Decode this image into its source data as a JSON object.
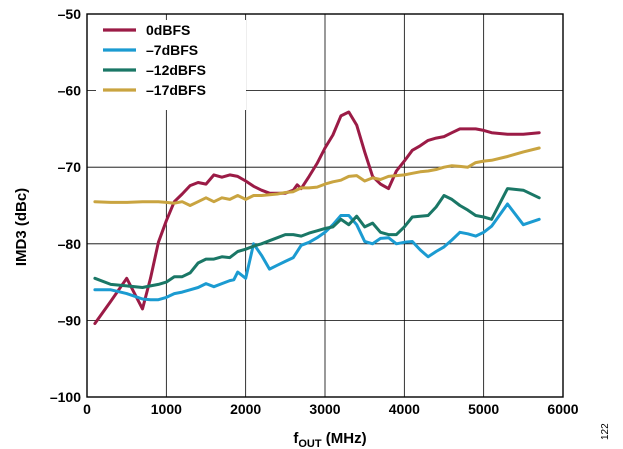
{
  "figure_number": "122",
  "chart_data": {
    "type": "line",
    "xlabel_main": "f",
    "xlabel_sub": "OUT",
    "xlabel_unit": " (MHz)",
    "ylabel": "IMD3 (dBc)",
    "xlim": [
      0,
      6000
    ],
    "ylim": [
      -100,
      -50
    ],
    "x_ticks": [
      0,
      1000,
      2000,
      3000,
      4000,
      5000,
      6000
    ],
    "x_tick_labels": [
      "0",
      "1000",
      "2000",
      "3000",
      "4000",
      "5000",
      "6000"
    ],
    "y_ticks": [
      -50,
      -60,
      -70,
      -80,
      -90,
      -100
    ],
    "y_tick_labels": [
      "–50",
      "–60",
      "–70",
      "–80",
      "–90",
      "–100"
    ],
    "grid": true,
    "legend_position": "top-left",
    "series": [
      {
        "name": "0dBFS",
        "color": "#9b1b46",
        "points": [
          [
            100,
            -90.4
          ],
          [
            300,
            -87.5
          ],
          [
            500,
            -84.5
          ],
          [
            700,
            -88.5
          ],
          [
            800,
            -84.5
          ],
          [
            900,
            -79.8
          ],
          [
            1000,
            -77
          ],
          [
            1100,
            -74.5
          ],
          [
            1200,
            -73.5
          ],
          [
            1300,
            -72.4
          ],
          [
            1400,
            -72
          ],
          [
            1500,
            -72.2
          ],
          [
            1600,
            -71
          ],
          [
            1700,
            -71.3
          ],
          [
            1800,
            -71
          ],
          [
            1900,
            -71.2
          ],
          [
            2000,
            -71.8
          ],
          [
            2100,
            -72.5
          ],
          [
            2200,
            -73
          ],
          [
            2300,
            -73.4
          ],
          [
            2400,
            -73.4
          ],
          [
            2500,
            -73.4
          ],
          [
            2600,
            -73
          ],
          [
            2650,
            -72.3
          ],
          [
            2700,
            -72.8
          ],
          [
            2800,
            -71.2
          ],
          [
            2900,
            -69.5
          ],
          [
            3000,
            -67.5
          ],
          [
            3100,
            -65.8
          ],
          [
            3200,
            -63.3
          ],
          [
            3300,
            -62.8
          ],
          [
            3400,
            -64.5
          ],
          [
            3500,
            -68
          ],
          [
            3600,
            -71.2
          ],
          [
            3700,
            -72.2
          ],
          [
            3800,
            -72.8
          ],
          [
            3900,
            -70.5
          ],
          [
            4000,
            -69.2
          ],
          [
            4100,
            -67.8
          ],
          [
            4200,
            -67.2
          ],
          [
            4300,
            -66.5
          ],
          [
            4400,
            -66.2
          ],
          [
            4500,
            -66
          ],
          [
            4600,
            -65.5
          ],
          [
            4700,
            -65
          ],
          [
            4800,
            -65
          ],
          [
            4900,
            -65
          ],
          [
            5000,
            -65.2
          ],
          [
            5100,
            -65.5
          ],
          [
            5300,
            -65.7
          ],
          [
            5500,
            -65.7
          ],
          [
            5700,
            -65.5
          ]
        ]
      },
      {
        "name": "–7dBFS",
        "color": "#1b9bd1",
        "points": [
          [
            100,
            -86
          ],
          [
            300,
            -86
          ],
          [
            500,
            -86.5
          ],
          [
            700,
            -87.2
          ],
          [
            800,
            -87.3
          ],
          [
            900,
            -87.3
          ],
          [
            1000,
            -87
          ],
          [
            1100,
            -86.5
          ],
          [
            1200,
            -86.3
          ],
          [
            1300,
            -86
          ],
          [
            1400,
            -85.7
          ],
          [
            1500,
            -85.2
          ],
          [
            1600,
            -85.6
          ],
          [
            1700,
            -85.2
          ],
          [
            1800,
            -84.8
          ],
          [
            1850,
            -84.7
          ],
          [
            1900,
            -83.7
          ],
          [
            2000,
            -84.5
          ],
          [
            2100,
            -80
          ],
          [
            2200,
            -81.5
          ],
          [
            2300,
            -83.3
          ],
          [
            2400,
            -82.8
          ],
          [
            2500,
            -82.3
          ],
          [
            2600,
            -81.8
          ],
          [
            2700,
            -80.2
          ],
          [
            2800,
            -79.8
          ],
          [
            2900,
            -79.2
          ],
          [
            3000,
            -78.5
          ],
          [
            3100,
            -77.5
          ],
          [
            3200,
            -76.3
          ],
          [
            3300,
            -76.3
          ],
          [
            3400,
            -77.5
          ],
          [
            3500,
            -79.7
          ],
          [
            3600,
            -80
          ],
          [
            3700,
            -79.3
          ],
          [
            3800,
            -79.2
          ],
          [
            3900,
            -80
          ],
          [
            4000,
            -79.8
          ],
          [
            4100,
            -79.7
          ],
          [
            4200,
            -80.8
          ],
          [
            4300,
            -81.7
          ],
          [
            4400,
            -81
          ],
          [
            4500,
            -80.4
          ],
          [
            4600,
            -79.5
          ],
          [
            4700,
            -78.5
          ],
          [
            4800,
            -78.7
          ],
          [
            4900,
            -79
          ],
          [
            5000,
            -78.5
          ],
          [
            5100,
            -77.7
          ],
          [
            5300,
            -74.8
          ],
          [
            5500,
            -77.5
          ],
          [
            5700,
            -76.8
          ]
        ]
      },
      {
        "name": "–12dBFS",
        "color": "#1a7766",
        "points": [
          [
            100,
            -84.5
          ],
          [
            300,
            -85.3
          ],
          [
            500,
            -85.5
          ],
          [
            700,
            -85.7
          ],
          [
            800,
            -85.5
          ],
          [
            900,
            -85.3
          ],
          [
            1000,
            -85
          ],
          [
            1100,
            -84.3
          ],
          [
            1200,
            -84.3
          ],
          [
            1300,
            -83.8
          ],
          [
            1400,
            -82.5
          ],
          [
            1500,
            -82
          ],
          [
            1600,
            -82
          ],
          [
            1700,
            -81.7
          ],
          [
            1800,
            -81.8
          ],
          [
            1900,
            -81
          ],
          [
            2000,
            -80.7
          ],
          [
            2100,
            -80.3
          ],
          [
            2200,
            -80
          ],
          [
            2300,
            -79.6
          ],
          [
            2400,
            -79.2
          ],
          [
            2500,
            -78.8
          ],
          [
            2600,
            -78.8
          ],
          [
            2700,
            -79
          ],
          [
            2800,
            -78.6
          ],
          [
            2900,
            -78.3
          ],
          [
            3000,
            -78
          ],
          [
            3100,
            -77.8
          ],
          [
            3200,
            -76.8
          ],
          [
            3300,
            -77.5
          ],
          [
            3400,
            -76.4
          ],
          [
            3500,
            -77.8
          ],
          [
            3600,
            -77.3
          ],
          [
            3700,
            -78.5
          ],
          [
            3800,
            -78.8
          ],
          [
            3900,
            -78.8
          ],
          [
            4000,
            -77.8
          ],
          [
            4100,
            -76.5
          ],
          [
            4200,
            -76.4
          ],
          [
            4300,
            -76.3
          ],
          [
            4400,
            -75.2
          ],
          [
            4500,
            -73.7
          ],
          [
            4600,
            -74.2
          ],
          [
            4700,
            -75
          ],
          [
            4800,
            -75.6
          ],
          [
            4900,
            -76.3
          ],
          [
            5000,
            -76.5
          ],
          [
            5100,
            -76.8
          ],
          [
            5300,
            -72.8
          ],
          [
            5500,
            -73
          ],
          [
            5700,
            -74
          ]
        ]
      },
      {
        "name": "–17dBFS",
        "color": "#c9a440",
        "points": [
          [
            100,
            -74.5
          ],
          [
            300,
            -74.6
          ],
          [
            500,
            -74.6
          ],
          [
            700,
            -74.5
          ],
          [
            900,
            -74.5
          ],
          [
            1000,
            -74.6
          ],
          [
            1100,
            -74.7
          ],
          [
            1200,
            -74.5
          ],
          [
            1300,
            -75
          ],
          [
            1400,
            -74.5
          ],
          [
            1500,
            -74
          ],
          [
            1600,
            -74.5
          ],
          [
            1700,
            -74
          ],
          [
            1800,
            -74.2
          ],
          [
            1900,
            -73.7
          ],
          [
            2000,
            -74.2
          ],
          [
            2100,
            -73.7
          ],
          [
            2200,
            -73.7
          ],
          [
            2300,
            -73.6
          ],
          [
            2400,
            -73.5
          ],
          [
            2500,
            -73.3
          ],
          [
            2600,
            -73.2
          ],
          [
            2700,
            -72.7
          ],
          [
            2800,
            -72.7
          ],
          [
            2900,
            -72.6
          ],
          [
            3000,
            -72.2
          ],
          [
            3100,
            -71.9
          ],
          [
            3200,
            -71.7
          ],
          [
            3300,
            -71.2
          ],
          [
            3400,
            -71.1
          ],
          [
            3500,
            -71.8
          ],
          [
            3600,
            -71.4
          ],
          [
            3700,
            -71.6
          ],
          [
            3800,
            -71.2
          ],
          [
            3900,
            -71.1
          ],
          [
            4000,
            -71
          ],
          [
            4100,
            -70.8
          ],
          [
            4200,
            -70.6
          ],
          [
            4300,
            -70.5
          ],
          [
            4400,
            -70.3
          ],
          [
            4500,
            -70
          ],
          [
            4600,
            -69.8
          ],
          [
            4700,
            -69.9
          ],
          [
            4800,
            -70
          ],
          [
            4900,
            -69.4
          ],
          [
            5000,
            -69.2
          ],
          [
            5100,
            -69.1
          ],
          [
            5300,
            -68.6
          ],
          [
            5500,
            -68
          ],
          [
            5700,
            -67.5
          ]
        ]
      }
    ]
  }
}
